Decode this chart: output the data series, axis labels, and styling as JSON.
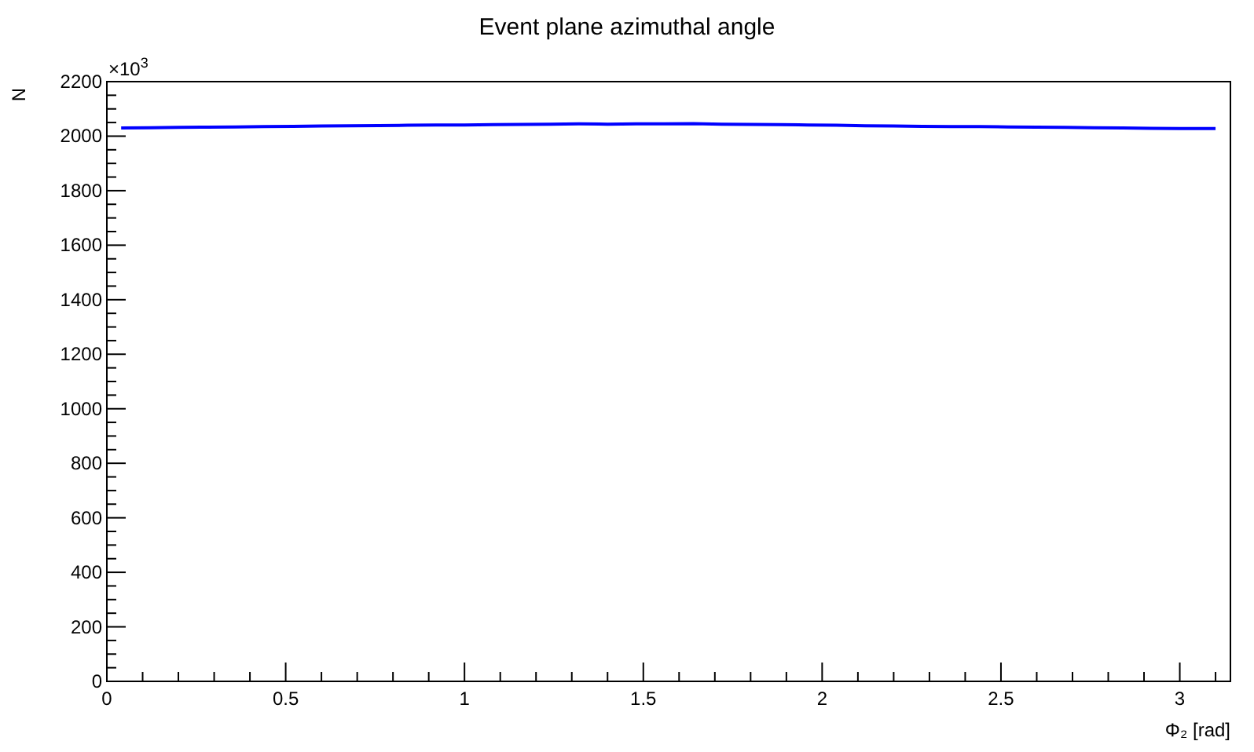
{
  "chart_data": {
    "type": "line",
    "title": "Event plane azimuthal angle",
    "xlabel": "Φ₂ [rad]",
    "ylabel": "N",
    "annotations": [
      "×10$^{3}$"
    ],
    "x": [
      0.04,
      0.12,
      0.2,
      0.28,
      0.36,
      0.44,
      0.52,
      0.6,
      0.68,
      0.76,
      0.84,
      0.92,
      1.0,
      1.08,
      1.16,
      1.24,
      1.32,
      1.4,
      1.48,
      1.56,
      1.64,
      1.72,
      1.8,
      1.88,
      1.96,
      2.04,
      2.12,
      2.2,
      2.28,
      2.36,
      2.44,
      2.52,
      2.6,
      2.68,
      2.76,
      2.84,
      2.92,
      3.0,
      3.1
    ],
    "series": [
      {
        "color": "#0000ff",
        "values": [
          2030,
          2031,
          2032,
          2033,
          2034,
          2035,
          2036,
          2037,
          2038,
          2039,
          2040,
          2041,
          2041,
          2042,
          2043,
          2044,
          2045,
          2044,
          2045,
          2045,
          2046,
          2044,
          2043,
          2042,
          2041,
          2040,
          2038,
          2037,
          2036,
          2035,
          2035,
          2034,
          2033,
          2032,
          2031,
          2030,
          2029,
          2028,
          2028
        ]
      }
    ],
    "xlim": [
      0,
      3.1416
    ],
    "xticks": [
      0,
      {
        "value": 0.1,
        "label": null
      },
      {
        "value": 0.2,
        "label": null
      },
      {
        "value": 0.3,
        "label": null
      },
      {
        "value": 0.4,
        "label": null
      },
      0.5,
      {
        "value": 0.6,
        "label": null
      },
      {
        "value": 0.7,
        "label": null
      },
      {
        "value": 0.8,
        "label": null
      },
      {
        "value": 0.9,
        "label": null
      },
      1,
      {
        "value": 1.1,
        "label": null
      },
      {
        "value": 1.2,
        "label": null
      },
      {
        "value": 1.3,
        "label": null
      },
      {
        "value": 1.4,
        "label": null
      },
      1.5,
      {
        "value": 1.6,
        "label": null
      },
      {
        "value": 1.7,
        "label": null
      },
      {
        "value": 1.8,
        "label": null
      },
      {
        "value": 1.9,
        "label": null
      },
      2,
      {
        "value": 2.1,
        "label": null
      },
      {
        "value": 2.2,
        "label": null
      },
      {
        "value": 2.3,
        "label": null
      },
      {
        "value": 2.4,
        "label": null
      },
      2.5,
      {
        "value": 2.6,
        "label": null
      },
      {
        "value": 2.7,
        "label": null
      },
      {
        "value": 2.8,
        "label": null
      },
      {
        "value": 2.9,
        "label": null
      },
      3,
      {
        "value": 3.1,
        "label": null
      }
    ],
    "ylim": [
      0,
      2200
    ],
    "yticks": [
      0,
      {
        "value": 50,
        "label": null
      },
      {
        "value": 100,
        "label": null
      },
      {
        "value": 150,
        "label": null
      },
      200,
      {
        "value": 250,
        "label": null
      },
      {
        "value": 300,
        "label": null
      },
      {
        "value": 350,
        "label": null
      },
      400,
      {
        "value": 450,
        "label": null
      },
      {
        "value": 500,
        "label": null
      },
      {
        "value": 550,
        "label": null
      },
      600,
      {
        "value": 650,
        "label": null
      },
      {
        "value": 700,
        "label": null
      },
      {
        "value": 750,
        "label": null
      },
      800,
      {
        "value": 850,
        "label": null
      },
      {
        "value": 900,
        "label": null
      },
      {
        "value": 950,
        "label": null
      },
      1000,
      {
        "value": 1050,
        "label": null
      },
      {
        "value": 1100,
        "label": null
      },
      {
        "value": 1150,
        "label": null
      },
      1200,
      {
        "value": 1250,
        "label": null
      },
      {
        "value": 1300,
        "label": null
      },
      {
        "value": 1350,
        "label": null
      },
      1400,
      {
        "value": 1450,
        "label": null
      },
      {
        "value": 1500,
        "label": null
      },
      {
        "value": 1550,
        "label": null
      },
      1600,
      {
        "value": 1650,
        "label": null
      },
      {
        "value": 1700,
        "label": null
      },
      {
        "value": 1750,
        "label": null
      },
      1800,
      {
        "value": 1850,
        "label": null
      },
      {
        "value": 1900,
        "label": null
      },
      {
        "value": 1950,
        "label": null
      },
      2000,
      {
        "value": 2050,
        "label": null
      },
      {
        "value": 2100,
        "label": null
      },
      {
        "value": 2150,
        "label": null
      },
      2200
    ],
    "grid": false,
    "marker": "none",
    "line_style": "solid"
  }
}
